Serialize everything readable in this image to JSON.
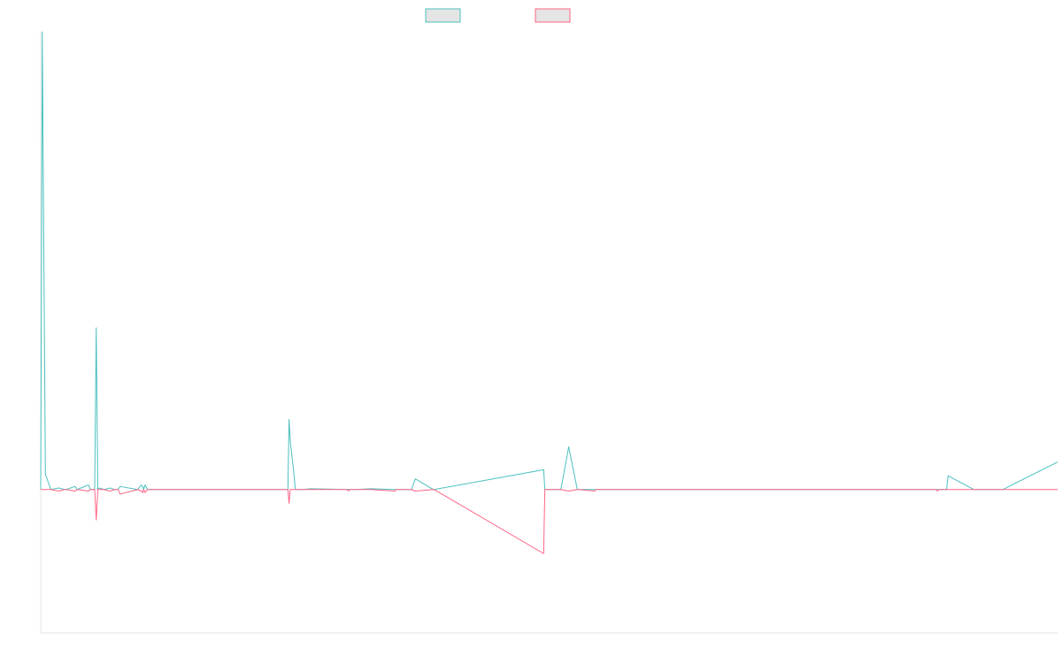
{
  "colors": {
    "series_1": "#4bc0c0",
    "series_2": "#ff6384",
    "legend_fill": "#e5e5e5",
    "axis": "#e5e5e5"
  },
  "chart_data": {
    "type": "line",
    "title": "",
    "xlabel": "",
    "ylabel": "",
    "legend": {
      "placement": "top-center",
      "entries": [
        {
          "series": 0,
          "label": ""
        },
        {
          "series": 1,
          "label": ""
        }
      ]
    },
    "grid": false,
    "x": [
      0,
      0.2,
      0.6,
      1.3,
      2.3,
      3.05,
      3.2,
      4.4,
      4.65,
      6.1,
      6.35,
      6.9,
      7.1,
      7.3,
      7.5,
      8.1,
      8.9,
      9.4,
      9.6,
      9.9,
      10.15,
      12.4,
      12.85,
      13.05,
      13.15,
      13.35,
      13.65,
      16.6,
      20.1,
      23.1,
      31.6,
      31.75,
      31.9,
      32.4,
      32.55,
      33.5,
      34.5,
      39.2,
      39.35,
      39.5,
      40.2,
      42.2,
      45.3,
      45.4,
      47.4,
      47.9,
      50.2,
      50.3,
      64.3,
      64.45,
      64.6,
      66.2,
      66.5,
      67.5,
      68.6,
      68.8,
      70.8,
      71,
      111.4,
      111.6,
      111.8,
      114.5,
      114.65,
      114.8,
      115.8,
      116.0,
      119.3,
      121.0,
      122.3,
      122.5,
      123.0,
      130.0
    ],
    "series": [
      {
        "values": [
          0,
          300,
          10,
          0,
          1,
          0,
          0,
          2,
          0,
          3,
          0,
          0,
          106,
          0,
          1,
          0,
          1,
          0,
          0,
          0,
          2,
          0,
          3,
          2,
          0,
          3,
          0,
          0,
          0,
          0,
          0,
          46,
          32,
          9,
          0,
          0,
          0.5,
          0,
          0,
          0,
          0,
          0.5,
          0,
          0,
          0,
          7,
          0,
          0,
          13,
          0,
          0,
          0,
          0,
          28,
          0,
          0,
          0,
          0,
          0,
          0,
          0,
          0,
          0,
          0,
          0,
          9,
          0,
          0,
          0,
          0,
          0,
          18
        ]
      },
      {
        "values": [
          0,
          0,
          0,
          0,
          -1,
          0,
          0,
          -1,
          0,
          -1,
          0,
          0,
          -20,
          0,
          0,
          0,
          -1,
          0,
          0,
          0,
          -3,
          0,
          -1,
          -2,
          0,
          -2,
          0,
          0,
          0,
          0,
          0,
          -9,
          0,
          0,
          0,
          0,
          0,
          0,
          -1,
          0,
          0,
          0,
          -1,
          0,
          0,
          -1,
          0,
          0,
          -42,
          0,
          0,
          0,
          0,
          -1,
          0,
          0,
          -1,
          0,
          0,
          0,
          0,
          0,
          -1,
          0,
          0,
          0,
          0,
          0,
          0,
          0,
          0,
          0
        ]
      }
    ],
    "xlim": [
      0,
      130
    ],
    "ylim": [
      -94,
      300
    ]
  }
}
